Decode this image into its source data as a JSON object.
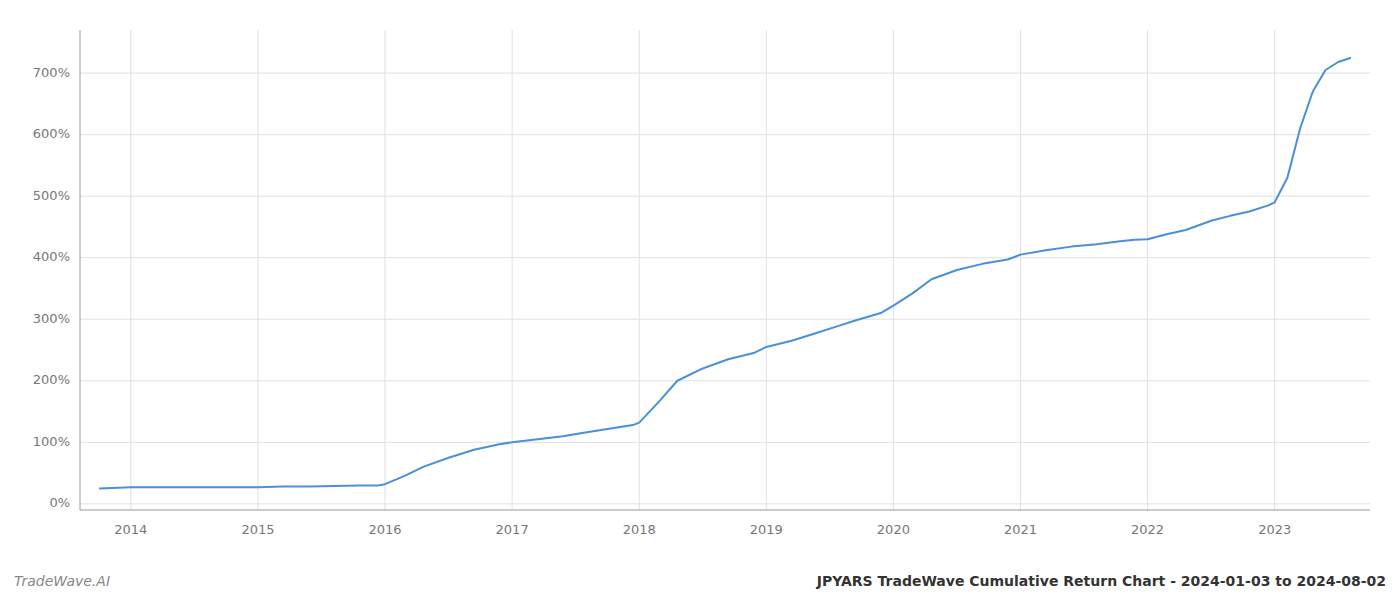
{
  "chart_data": {
    "type": "line",
    "title": "JPYARS TradeWave Cumulative Return Chart - 2024-01-03 to 2024-08-02",
    "annotations": [
      "TradeWave.AI"
    ],
    "color": "#4a90d9",
    "grid": true,
    "x": [
      2013.75,
      2014.0,
      2014.15,
      2014.3,
      2014.5,
      2014.7,
      2014.9,
      2015.0,
      2015.2,
      2015.4,
      2015.6,
      2015.8,
      2015.95,
      2016.0,
      2016.15,
      2016.3,
      2016.5,
      2016.7,
      2016.9,
      2017.0,
      2017.2,
      2017.4,
      2017.55,
      2017.7,
      2017.85,
      2017.95,
      2018.0,
      2018.15,
      2018.3,
      2018.5,
      2018.7,
      2018.9,
      2019.0,
      2019.2,
      2019.4,
      2019.55,
      2019.7,
      2019.9,
      2020.0,
      2020.15,
      2020.3,
      2020.5,
      2020.7,
      2020.9,
      2021.0,
      2021.2,
      2021.4,
      2021.6,
      2021.8,
      2021.9,
      2022.0,
      2022.15,
      2022.3,
      2022.5,
      2022.65,
      2022.8,
      2022.95,
      2023.0,
      2023.1,
      2023.2,
      2023.3,
      2023.4,
      2023.5,
      2023.6
    ],
    "values": [
      0.25,
      0.27,
      0.27,
      0.27,
      0.27,
      0.27,
      0.27,
      0.27,
      0.28,
      0.28,
      0.29,
      0.3,
      0.3,
      0.32,
      0.45,
      0.6,
      0.75,
      0.88,
      0.97,
      1.0,
      1.05,
      1.1,
      1.15,
      1.2,
      1.25,
      1.28,
      1.32,
      1.65,
      2.0,
      2.2,
      2.35,
      2.45,
      2.55,
      2.65,
      2.78,
      2.88,
      2.98,
      3.1,
      3.22,
      3.42,
      3.65,
      3.8,
      3.9,
      3.97,
      4.05,
      4.12,
      4.18,
      4.22,
      4.27,
      4.29,
      4.3,
      4.38,
      4.45,
      4.6,
      4.68,
      4.75,
      4.85,
      4.9,
      5.3,
      6.1,
      6.7,
      7.05,
      7.18,
      7.25
    ],
    "xlim": [
      2013.6,
      2023.75
    ],
    "xticks": [
      2014,
      2015,
      2016,
      2017,
      2018,
      2019,
      2020,
      2021,
      2022,
      2023
    ],
    "ylim": [
      -0.1,
      7.7
    ],
    "yticks": [
      {
        "value": 0,
        "label": "0%"
      },
      {
        "value": 1,
        "label": "100%"
      },
      {
        "value": 2,
        "label": "200%"
      },
      {
        "value": 3,
        "label": "300%"
      },
      {
        "value": 4,
        "label": "400%"
      },
      {
        "value": 5,
        "label": "500%"
      },
      {
        "value": 6,
        "label": "600%"
      },
      {
        "value": 7,
        "label": "700%"
      }
    ]
  }
}
